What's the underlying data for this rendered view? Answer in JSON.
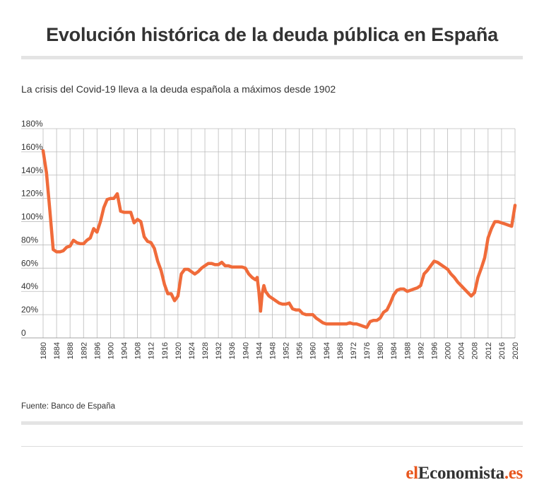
{
  "title": "Evolución histórica de la deuda pública en España",
  "subtitle": "La crisis del Covid-19 lleva a la deuda española a máximos desde 1902",
  "source": "Fuente:  Banco de España",
  "brand": {
    "part1": "el",
    "part2": "Economista",
    "part3": ".es"
  },
  "colors": {
    "line": "#f06b3a",
    "grid": "#bbbbbb",
    "text": "#333333"
  },
  "chart_data": {
    "type": "line",
    "title": "Evolución histórica de la deuda pública en España",
    "xlabel": "",
    "ylabel": "",
    "xlim": [
      1880,
      2020
    ],
    "ylim": [
      0,
      180
    ],
    "grid": true,
    "y_ticks": [
      {
        "value": 0,
        "label": "0"
      },
      {
        "value": 20,
        "label": "20%"
      },
      {
        "value": 40,
        "label": "40%"
      },
      {
        "value": 60,
        "label": "60%"
      },
      {
        "value": 80,
        "label": "80%"
      },
      {
        "value": 100,
        "label": "100%"
      },
      {
        "value": 120,
        "label": "120%"
      },
      {
        "value": 140,
        "label": "140%"
      },
      {
        "value": 160,
        "label": "160%"
      },
      {
        "value": 180,
        "label": "180%"
      }
    ],
    "x_ticks": [
      "1880",
      "1884",
      "1888",
      "1892",
      "1896",
      "1900",
      "1904",
      "1908",
      "1912",
      "1916",
      "1920",
      "1924",
      "1928",
      "1932",
      "1936",
      "1940",
      "1944",
      "1948",
      "1952",
      "1956",
      "1960",
      "1964",
      "1968",
      "1972",
      "1976",
      "1980",
      "1984",
      "1988",
      "1992",
      "1996",
      "2000",
      "2004",
      "2008",
      "2012",
      "2016",
      "2020"
    ],
    "series": [
      {
        "color": "#f06b3a",
        "points": [
          [
            1880,
            161
          ],
          [
            1881,
            142
          ],
          [
            1882,
            110
          ],
          [
            1883,
            76
          ],
          [
            1884,
            74
          ],
          [
            1885,
            74
          ],
          [
            1886,
            75
          ],
          [
            1887,
            78
          ],
          [
            1888,
            79
          ],
          [
            1889,
            84
          ],
          [
            1890,
            82
          ],
          [
            1891,
            81
          ],
          [
            1892,
            81
          ],
          [
            1893,
            84
          ],
          [
            1894,
            86
          ],
          [
            1895,
            94
          ],
          [
            1896,
            91
          ],
          [
            1897,
            100
          ],
          [
            1898,
            112
          ],
          [
            1899,
            119
          ],
          [
            1900,
            120
          ],
          [
            1901,
            120
          ],
          [
            1902,
            124
          ],
          [
            1903,
            109
          ],
          [
            1904,
            108
          ],
          [
            1905,
            108
          ],
          [
            1906,
            108
          ],
          [
            1907,
            99
          ],
          [
            1908,
            102
          ],
          [
            1909,
            100
          ],
          [
            1910,
            87
          ],
          [
            1911,
            83
          ],
          [
            1912,
            82
          ],
          [
            1913,
            77
          ],
          [
            1914,
            66
          ],
          [
            1915,
            58
          ],
          [
            1916,
            46
          ],
          [
            1917,
            38
          ],
          [
            1918,
            38
          ],
          [
            1919,
            32
          ],
          [
            1920,
            36
          ],
          [
            1921,
            55
          ],
          [
            1922,
            59
          ],
          [
            1923,
            59
          ],
          [
            1924,
            57
          ],
          [
            1925,
            55
          ],
          [
            1926,
            57
          ],
          [
            1927,
            60
          ],
          [
            1928,
            62
          ],
          [
            1929,
            64
          ],
          [
            1930,
            64
          ],
          [
            1931,
            63
          ],
          [
            1932,
            63
          ],
          [
            1933,
            65
          ],
          [
            1934,
            62
          ],
          [
            1935,
            62
          ],
          [
            1936,
            61
          ],
          [
            1937,
            61
          ],
          [
            1938,
            61
          ],
          [
            1939,
            61
          ],
          [
            1940,
            60
          ],
          [
            1941,
            55
          ],
          [
            1942,
            52
          ],
          [
            1943,
            50
          ],
          [
            1943.5,
            52
          ],
          [
            1944,
            40
          ],
          [
            1944.5,
            23
          ],
          [
            1945,
            38
          ],
          [
            1945.5,
            45
          ],
          [
            1946,
            40
          ],
          [
            1947,
            36
          ],
          [
            1948,
            34
          ],
          [
            1949,
            32
          ],
          [
            1950,
            30
          ],
          [
            1951,
            29
          ],
          [
            1952,
            29
          ],
          [
            1953,
            30
          ],
          [
            1954,
            25
          ],
          [
            1955,
            24
          ],
          [
            1956,
            24
          ],
          [
            1957,
            21
          ],
          [
            1958,
            20
          ],
          [
            1959,
            20
          ],
          [
            1960,
            20
          ],
          [
            1961,
            17
          ],
          [
            1962,
            15
          ],
          [
            1963,
            13
          ],
          [
            1964,
            12
          ],
          [
            1965,
            12
          ],
          [
            1966,
            12
          ],
          [
            1967,
            12
          ],
          [
            1968,
            12
          ],
          [
            1969,
            12
          ],
          [
            1970,
            12
          ],
          [
            1971,
            13
          ],
          [
            1972,
            12
          ],
          [
            1973,
            12
          ],
          [
            1974,
            11
          ],
          [
            1975,
            10
          ],
          [
            1976,
            9
          ],
          [
            1977,
            14
          ],
          [
            1978,
            15
          ],
          [
            1979,
            15
          ],
          [
            1980,
            17
          ],
          [
            1981,
            22
          ],
          [
            1982,
            24
          ],
          [
            1983,
            30
          ],
          [
            1984,
            37
          ],
          [
            1985,
            41
          ],
          [
            1986,
            42
          ],
          [
            1987,
            42
          ],
          [
            1988,
            40
          ],
          [
            1989,
            41
          ],
          [
            1990,
            42
          ],
          [
            1991,
            43
          ],
          [
            1992,
            45
          ],
          [
            1993,
            55
          ],
          [
            1994,
            58
          ],
          [
            1995,
            62
          ],
          [
            1996,
            66
          ],
          [
            1997,
            65
          ],
          [
            1998,
            63
          ],
          [
            1999,
            61
          ],
          [
            2000,
            59
          ],
          [
            2001,
            55
          ],
          [
            2002,
            52
          ],
          [
            2003,
            48
          ],
          [
            2004,
            45
          ],
          [
            2005,
            42
          ],
          [
            2006,
            39
          ],
          [
            2007,
            36
          ],
          [
            2008,
            39
          ],
          [
            2009,
            52
          ],
          [
            2010,
            60
          ],
          [
            2011,
            69
          ],
          [
            2012,
            86
          ],
          [
            2013,
            94
          ],
          [
            2014,
            100
          ],
          [
            2015,
            100
          ],
          [
            2016,
            99
          ],
          [
            2017,
            98
          ],
          [
            2018,
            97
          ],
          [
            2019,
            96
          ],
          [
            2020,
            114
          ]
        ]
      }
    ]
  }
}
